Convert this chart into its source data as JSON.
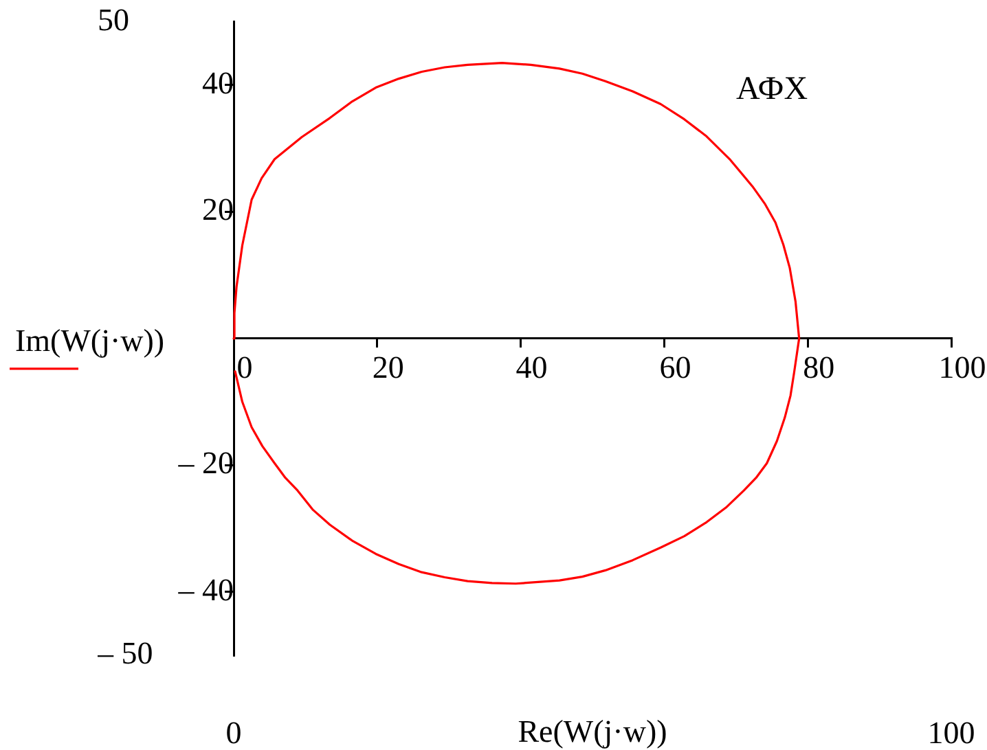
{
  "chart_data": {
    "type": "line",
    "title": "АФХ",
    "xlabel": "Re(W(j·w))",
    "legend": "left",
    "grid": false,
    "marker": "none",
    "line_style": "solid",
    "series": [
      {
        "name": "Im(W(j·w))",
        "color": "#ff0000",
        "x": [
          0,
          0.1,
          0.4,
          1.2,
          2.5,
          3.9,
          5.7,
          9.5,
          13.4,
          16.5,
          19.8,
          23,
          26.2,
          29.4,
          32.6,
          37.4,
          41.4,
          45.4,
          48.6,
          51.8,
          55.6,
          59.5,
          62.8,
          65.9,
          69.2,
          72.3,
          74,
          75.5,
          76.6,
          77.5,
          78.3,
          78.8,
          78.1,
          77.6,
          76.8,
          75.7,
          74.3,
          72.8,
          71.1,
          68.6,
          65.9,
          62.8,
          59.5,
          55.6,
          51.8,
          48.6,
          45.4,
          39.3,
          36,
          32.6,
          29.4,
          26.2,
          23,
          19.8,
          16.5,
          13.4,
          11,
          8.9,
          7.2,
          5.7,
          4,
          2.5,
          1.2,
          0.2
        ],
        "values": [
          0,
          4,
          8.2,
          14.7,
          21.9,
          25.3,
          28.3,
          31.8,
          34.8,
          37.4,
          39.6,
          41,
          42.1,
          42.8,
          43.2,
          43.5,
          43.2,
          42.6,
          41.8,
          40.6,
          39,
          37,
          34.6,
          31.9,
          28.2,
          24,
          21.3,
          18.3,
          14.8,
          11.1,
          5.8,
          0,
          -5.4,
          -9,
          -12.5,
          -16.2,
          -19.7,
          -22,
          -24,
          -26.7,
          -29,
          -31.2,
          -33,
          -35,
          -36.6,
          -37.6,
          -38.2,
          -38.7,
          -38.6,
          -38.3,
          -37.7,
          -36.9,
          -35.6,
          -34,
          -31.9,
          -29.4,
          -27,
          -24,
          -22,
          -19.7,
          -17,
          -14,
          -10,
          -5.2
        ]
      }
    ],
    "xlim": [
      0,
      100
    ],
    "xticks": [
      0,
      20,
      40,
      60,
      80,
      100
    ],
    "ylim": [
      -50,
      50
    ],
    "yticks": [
      {
        "value": -40,
        "label": "– 40"
      },
      {
        "value": -20,
        "label": "– 20"
      },
      20,
      40
    ],
    "x2lim": [
      0,
      100
    ],
    "x2ticks": [
      0,
      100
    ],
    "y2lim": [
      -50,
      50
    ],
    "y2ticks": [
      {
        "value": -50,
        "label": "– 50"
      },
      50
    ]
  }
}
